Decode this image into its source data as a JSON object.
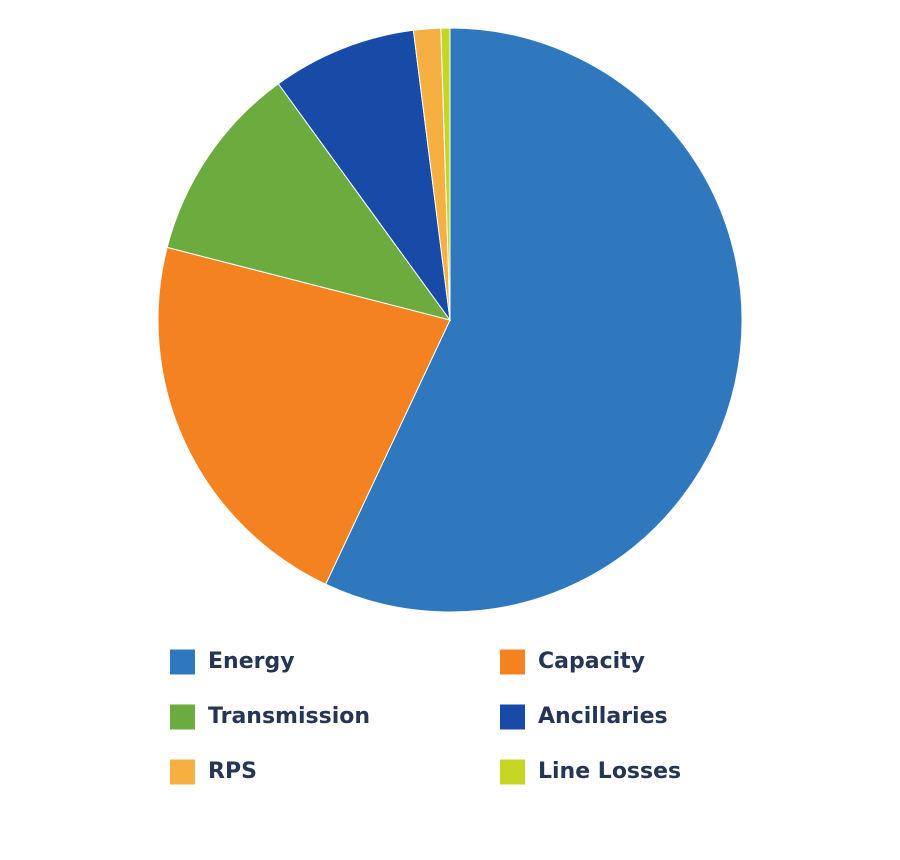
{
  "chart_data": {
    "type": "pie",
    "categories": [
      "Energy",
      "Capacity",
      "Transmission",
      "Ancillaries",
      "RPS",
      "Line Losses"
    ],
    "values": [
      57,
      22,
      11,
      8,
      1.5,
      0.5
    ],
    "colors": [
      "#2f78bd",
      "#f58220",
      "#6cab3e",
      "#184ba8",
      "#f5b041",
      "#c6d626"
    ],
    "legend": "bottom"
  }
}
